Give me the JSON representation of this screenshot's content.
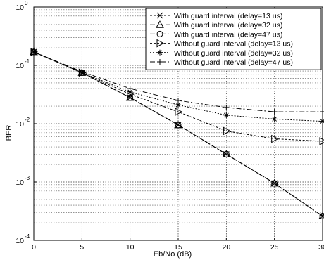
{
  "chart_data": {
    "type": "line",
    "title": "",
    "xlabel": "Eb/No (dB)",
    "ylabel": "BER",
    "xscale": "linear",
    "yscale": "log",
    "xlim": [
      0,
      30
    ],
    "ylim": [
      0.0001,
      1
    ],
    "x_ticks": [
      0,
      5,
      10,
      15,
      20,
      25,
      30
    ],
    "x_tick_labels": [
      "0",
      "5",
      "10",
      "15",
      "20",
      "25",
      "30"
    ],
    "y_ticks": [
      0.0001,
      0.001,
      0.01,
      0.1,
      1
    ],
    "y_tick_labels": [
      {
        "base": "10",
        "exp": "-4"
      },
      {
        "base": "10",
        "exp": "-3"
      },
      {
        "base": "10",
        "exp": "-2"
      },
      {
        "base": "10",
        "exp": "-1"
      },
      {
        "base": "10",
        "exp": "0"
      }
    ],
    "grid": true,
    "legend_position": "top-right",
    "x": [
      0,
      5,
      10,
      15,
      20,
      25,
      30
    ],
    "series": [
      {
        "name": "With guard interval (delay=13 us)",
        "marker": "x",
        "dash": "3,2",
        "values": [
          0.17,
          0.075,
          0.028,
          0.0095,
          0.003,
          0.00095,
          0.00026
        ]
      },
      {
        "name": "With guard interval (delay=32 us)",
        "marker": "triangle-up",
        "dash": "7,4",
        "values": [
          0.17,
          0.075,
          0.028,
          0.0095,
          0.003,
          0.00095,
          0.00026
        ]
      },
      {
        "name": "With guard interval (delay=47 us)",
        "marker": "circle",
        "dash": "7,3,2,3",
        "values": [
          0.17,
          0.075,
          0.028,
          0.0095,
          0.003,
          0.00095,
          0.00026
        ]
      },
      {
        "name": "Without guard interval (delay=13 us)",
        "marker": "triangle-right",
        "dash": "3,2",
        "values": [
          0.17,
          0.075,
          0.032,
          0.016,
          0.0075,
          0.0055,
          0.005
        ]
      },
      {
        "name": "Without guard interval (delay=32 us)",
        "marker": "star",
        "dash": "2,2",
        "values": [
          0.17,
          0.075,
          0.035,
          0.021,
          0.014,
          0.012,
          0.011
        ]
      },
      {
        "name": "Without guard interval (delay=47 us)",
        "marker": "plus",
        "dash": "7,3,2,3",
        "values": [
          0.17,
          0.078,
          0.04,
          0.025,
          0.019,
          0.016,
          0.016
        ]
      }
    ]
  }
}
